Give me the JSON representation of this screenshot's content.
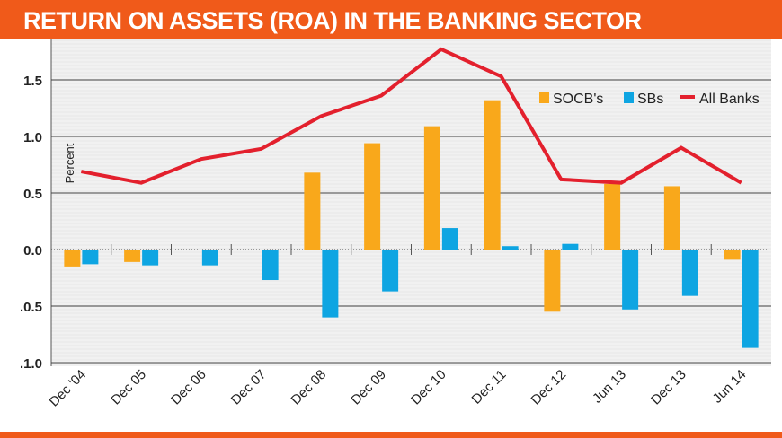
{
  "header": {
    "title": "RETURN ON ASSETS (ROA) IN THE BANKING SECTOR"
  },
  "chart_data": {
    "type": "bar",
    "title": "RETURN ON ASSETS (ROA) IN THE BANKING SECTOR",
    "ylabel": "Percent",
    "xlabel": "",
    "ylim": [
      -1.0,
      1.8
    ],
    "yticks": [
      {
        "value": 1.5,
        "label": "1.5"
      },
      {
        "value": 1.0,
        "label": "1.0"
      },
      {
        "value": 0.5,
        "label": "0.5"
      },
      {
        "value": 0.0,
        "label": "0.0"
      },
      {
        "value": -0.5,
        "label": ".0.5"
      },
      {
        "value": -1.0,
        "label": ".1.0"
      }
    ],
    "categories": [
      "Dec '04",
      "Dec 05",
      "Dec 06",
      "Dec 07",
      "Dec 08",
      "Dec 09",
      "Dec 10",
      "Dec 11",
      "Dec 12",
      "Jun 13",
      "Dec 13",
      "Jun 14"
    ],
    "series": [
      {
        "name": "SOCB's",
        "kind": "bar",
        "color": "#f9a81b",
        "values": [
          -0.15,
          -0.11,
          null,
          null,
          0.68,
          0.94,
          1.09,
          1.32,
          -0.55,
          0.58,
          0.56,
          -0.09
        ]
      },
      {
        "name": "SBs",
        "kind": "bar",
        "color": "#0ea5e2",
        "values": [
          -0.13,
          -0.14,
          -0.14,
          -0.27,
          -0.6,
          -0.37,
          0.19,
          0.03,
          0.05,
          -0.53,
          -0.41,
          -0.87
        ]
      },
      {
        "name": "All Banks",
        "kind": "line",
        "color": "#e3202d",
        "values": [
          0.69,
          0.59,
          0.8,
          0.89,
          1.18,
          1.36,
          1.77,
          1.53,
          0.62,
          0.59,
          0.9,
          0.59
        ]
      }
    ],
    "legend": {
      "position": "top-right",
      "labels": [
        "SOCB's",
        "SBs",
        "All Banks"
      ]
    },
    "grid": true
  }
}
